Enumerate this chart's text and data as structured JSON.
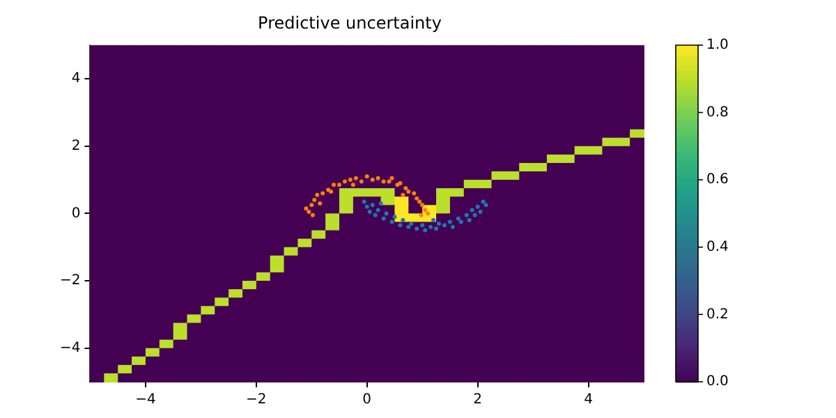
{
  "chart_data": {
    "type": "heatmap",
    "title": "Predictive uncertainty",
    "xlim": [
      -5,
      5
    ],
    "ylim": [
      -5,
      5
    ],
    "xticks": [
      -4,
      -2,
      0,
      2,
      4
    ],
    "yticks": [
      -4,
      -2,
      0,
      2,
      4
    ],
    "clim": [
      0,
      1
    ],
    "cticks": [
      {
        "value": 0,
        "label": "0.0"
      },
      {
        "value": 0.2,
        "label": "0.2"
      },
      {
        "value": 0.4,
        "label": "0.4"
      },
      {
        "value": 0.6,
        "label": "0.6"
      },
      {
        "value": 0.8,
        "label": "0.8"
      },
      {
        "value": 1,
        "label": "1.0"
      }
    ],
    "cells": [
      [
        0,
        0,
        0,
        0,
        0,
        0,
        0,
        0,
        0,
        0,
        0,
        0,
        0,
        0,
        0,
        0,
        0,
        0,
        0,
        0,
        0,
        0,
        0,
        0,
        0,
        0,
        0,
        0,
        0,
        0,
        0,
        0,
        0,
        0,
        0,
        0,
        0,
        0,
        0,
        0
      ],
      [
        0,
        0,
        0,
        0,
        0,
        0,
        0,
        0,
        0,
        0,
        0,
        0,
        0,
        0,
        0,
        0,
        0,
        0,
        0,
        0,
        0,
        0,
        0,
        0,
        0,
        0,
        0,
        0,
        0,
        0,
        0,
        0,
        0,
        0,
        0,
        0,
        0,
        0,
        0,
        0
      ],
      [
        0,
        0,
        0,
        0,
        0,
        0,
        0,
        0,
        0,
        0,
        0,
        0,
        0,
        0,
        0,
        0,
        0,
        0,
        0,
        0,
        0,
        0,
        0,
        0,
        0,
        0,
        0,
        0,
        0,
        0,
        0,
        0,
        0,
        0,
        0,
        0,
        0,
        0,
        0,
        0
      ],
      [
        0,
        0,
        0,
        0,
        0,
        0,
        0,
        0,
        0,
        0,
        0,
        0,
        0,
        0,
        0,
        0,
        0,
        0,
        0,
        0,
        0,
        0,
        0,
        0,
        0,
        0,
        0,
        0,
        0,
        0,
        0,
        0,
        0,
        0,
        0,
        0,
        0,
        0,
        0,
        0
      ],
      [
        0,
        0,
        0,
        0,
        0,
        0,
        0,
        0,
        0,
        0,
        0,
        0,
        0,
        0,
        0,
        0,
        0,
        0,
        0,
        0,
        0,
        0,
        0,
        0,
        0,
        0,
        0,
        0,
        0,
        0,
        0,
        0,
        0,
        0,
        0,
        0,
        0,
        0,
        0,
        0
      ],
      [
        0,
        0,
        0,
        0,
        0,
        0,
        0,
        0,
        0,
        0,
        0,
        0,
        0,
        0,
        0,
        0,
        0,
        0,
        0,
        0,
        0,
        0,
        0,
        0,
        0,
        0,
        0,
        0,
        0,
        0,
        0,
        0,
        0,
        0,
        0,
        0,
        0,
        0,
        0,
        0
      ],
      [
        0,
        0,
        0,
        0,
        0,
        0,
        0,
        0,
        0,
        0,
        0,
        0,
        0,
        0,
        0,
        0,
        0,
        0,
        0,
        0,
        0,
        0,
        0,
        0,
        0,
        0,
        0,
        0,
        0,
        0,
        0,
        0,
        0,
        0,
        0,
        0,
        0,
        0,
        0,
        0
      ],
      [
        0,
        0,
        0,
        0,
        0,
        0,
        0,
        0,
        0,
        0,
        0,
        0,
        0,
        0,
        0,
        0,
        0,
        0,
        0,
        0,
        0,
        0,
        0,
        0,
        0,
        0,
        0,
        0,
        0,
        0,
        0,
        0,
        0,
        0,
        0,
        0,
        0,
        0,
        0,
        0
      ],
      [
        0,
        0,
        0,
        0,
        0,
        0,
        0,
        0,
        0,
        0,
        0,
        0,
        0,
        0,
        0,
        0,
        0,
        0,
        0,
        0,
        0,
        0,
        0,
        0,
        0,
        0,
        0,
        0,
        0,
        0,
        0,
        0,
        0,
        0,
        0,
        0,
        0,
        0,
        0,
        0
      ],
      [
        0,
        0,
        0,
        0,
        0,
        0,
        0,
        0,
        0,
        0,
        0,
        0,
        0,
        0,
        0,
        0,
        0,
        0,
        0,
        0,
        0,
        0,
        0,
        0,
        0,
        0,
        0,
        0,
        0,
        0,
        0,
        0,
        0,
        0,
        0,
        0,
        0,
        0,
        0,
        0
      ],
      [
        0,
        0,
        0,
        0,
        0,
        0,
        0,
        0,
        0,
        0,
        0,
        0,
        0,
        0,
        0,
        0,
        0,
        0,
        0,
        0,
        0,
        0,
        0,
        0,
        0,
        0,
        0,
        0,
        0,
        0,
        0,
        0,
        0,
        0,
        0,
        0,
        0,
        0,
        0,
        0.9
      ],
      [
        0,
        0,
        0,
        0,
        0,
        0,
        0,
        0,
        0,
        0,
        0,
        0,
        0,
        0,
        0,
        0,
        0,
        0,
        0,
        0,
        0,
        0,
        0,
        0,
        0,
        0,
        0,
        0,
        0,
        0,
        0,
        0,
        0,
        0,
        0,
        0,
        0,
        0.9,
        0.9,
        0
      ],
      [
        0,
        0,
        0,
        0,
        0,
        0,
        0,
        0,
        0,
        0,
        0,
        0,
        0,
        0,
        0,
        0,
        0,
        0,
        0,
        0,
        0,
        0,
        0,
        0,
        0,
        0,
        0,
        0,
        0,
        0,
        0,
        0,
        0,
        0,
        0,
        0.9,
        0.9,
        0,
        0,
        0
      ],
      [
        0,
        0,
        0,
        0,
        0,
        0,
        0,
        0,
        0,
        0,
        0,
        0,
        0,
        0,
        0,
        0,
        0,
        0,
        0,
        0,
        0,
        0,
        0,
        0,
        0,
        0,
        0,
        0,
        0,
        0,
        0,
        0,
        0,
        0.9,
        0.9,
        0,
        0,
        0,
        0,
        0
      ],
      [
        0,
        0,
        0,
        0,
        0,
        0,
        0,
        0,
        0,
        0,
        0,
        0,
        0,
        0,
        0,
        0,
        0,
        0,
        0,
        0,
        0,
        0,
        0,
        0,
        0,
        0,
        0,
        0,
        0,
        0,
        0,
        0.9,
        0.9,
        0,
        0,
        0,
        0,
        0,
        0,
        0
      ],
      [
        0,
        0,
        0,
        0,
        0,
        0,
        0,
        0,
        0,
        0,
        0,
        0,
        0,
        0,
        0,
        0,
        0,
        0,
        0,
        0,
        0,
        0,
        0,
        0,
        0,
        0,
        0,
        0,
        0,
        0.9,
        0.9,
        0,
        0,
        0,
        0,
        0,
        0,
        0,
        0,
        0
      ],
      [
        0,
        0,
        0,
        0,
        0,
        0,
        0,
        0,
        0,
        0,
        0,
        0,
        0,
        0,
        0,
        0,
        0,
        0,
        0,
        0,
        0,
        0,
        0,
        0,
        0,
        0,
        0,
        0.9,
        0.9,
        0,
        0,
        0,
        0,
        0,
        0,
        0,
        0,
        0,
        0,
        0
      ],
      [
        0,
        0,
        0,
        0,
        0,
        0,
        0,
        0,
        0,
        0,
        0,
        0,
        0,
        0,
        0,
        0,
        0,
        0,
        0.9,
        0.9,
        0.9,
        0.9,
        0,
        0,
        0,
        0.9,
        0.9,
        0,
        0,
        0,
        0,
        0,
        0,
        0,
        0,
        0,
        0,
        0,
        0,
        0
      ],
      [
        0,
        0,
        0,
        0,
        0,
        0,
        0,
        0,
        0,
        0,
        0,
        0,
        0,
        0,
        0,
        0,
        0,
        0,
        0.9,
        0,
        0,
        0.9,
        1,
        0,
        0,
        0.9,
        0,
        0,
        0,
        0,
        0,
        0,
        0,
        0,
        0,
        0,
        0,
        0,
        0,
        0
      ],
      [
        0,
        0,
        0,
        0,
        0,
        0,
        0,
        0,
        0,
        0,
        0,
        0,
        0,
        0,
        0,
        0,
        0,
        0,
        0.9,
        0,
        0,
        0,
        1,
        0,
        1,
        0.9,
        0,
        0,
        0,
        0,
        0,
        0,
        0,
        0,
        0,
        0,
        0,
        0,
        0,
        0
      ],
      [
        0,
        0,
        0,
        0,
        0,
        0,
        0,
        0,
        0,
        0,
        0,
        0,
        0,
        0,
        0,
        0,
        0,
        0.9,
        0,
        0,
        0,
        0,
        1,
        1,
        1,
        0,
        0,
        0,
        0,
        0,
        0,
        0,
        0,
        0,
        0,
        0,
        0,
        0,
        0,
        0
      ],
      [
        0,
        0,
        0,
        0,
        0,
        0,
        0,
        0,
        0,
        0,
        0,
        0,
        0,
        0,
        0,
        0,
        0,
        0.9,
        0,
        0,
        0,
        0,
        0,
        0,
        0,
        0,
        0,
        0,
        0,
        0,
        0,
        0,
        0,
        0,
        0,
        0,
        0,
        0,
        0,
        0
      ],
      [
        0,
        0,
        0,
        0,
        0,
        0,
        0,
        0,
        0,
        0,
        0,
        0,
        0,
        0,
        0,
        0,
        0.9,
        0,
        0,
        0,
        0,
        0,
        0,
        0,
        0,
        0,
        0,
        0,
        0,
        0,
        0,
        0,
        0,
        0,
        0,
        0,
        0,
        0,
        0,
        0
      ],
      [
        0,
        0,
        0,
        0,
        0,
        0,
        0,
        0,
        0,
        0,
        0,
        0,
        0,
        0,
        0,
        0.9,
        0,
        0,
        0,
        0,
        0,
        0,
        0,
        0,
        0,
        0,
        0,
        0,
        0,
        0,
        0,
        0,
        0,
        0,
        0,
        0,
        0,
        0,
        0,
        0
      ],
      [
        0,
        0,
        0,
        0,
        0,
        0,
        0,
        0,
        0,
        0,
        0,
        0,
        0,
        0,
        0.9,
        0,
        0,
        0,
        0,
        0,
        0,
        0,
        0,
        0,
        0,
        0,
        0,
        0,
        0,
        0,
        0,
        0,
        0,
        0,
        0,
        0,
        0,
        0,
        0,
        0
      ],
      [
        0,
        0,
        0,
        0,
        0,
        0,
        0,
        0,
        0,
        0,
        0,
        0,
        0,
        0.9,
        0,
        0,
        0,
        0,
        0,
        0,
        0,
        0,
        0,
        0,
        0,
        0,
        0,
        0,
        0,
        0,
        0,
        0,
        0,
        0,
        0,
        0,
        0,
        0,
        0,
        0
      ],
      [
        0,
        0,
        0,
        0,
        0,
        0,
        0,
        0,
        0,
        0,
        0,
        0,
        0,
        0.9,
        0,
        0,
        0,
        0,
        0,
        0,
        0,
        0,
        0,
        0,
        0,
        0,
        0,
        0,
        0,
        0,
        0,
        0,
        0,
        0,
        0,
        0,
        0,
        0,
        0,
        0
      ],
      [
        0,
        0,
        0,
        0,
        0,
        0,
        0,
        0,
        0,
        0,
        0,
        0,
        0.9,
        0,
        0,
        0,
        0,
        0,
        0,
        0,
        0,
        0,
        0,
        0,
        0,
        0,
        0,
        0,
        0,
        0,
        0,
        0,
        0,
        0,
        0,
        0,
        0,
        0,
        0,
        0
      ],
      [
        0,
        0,
        0,
        0,
        0,
        0,
        0,
        0,
        0,
        0,
        0,
        0.9,
        0,
        0,
        0,
        0,
        0,
        0,
        0,
        0,
        0,
        0,
        0,
        0,
        0,
        0,
        0,
        0,
        0,
        0,
        0,
        0,
        0,
        0,
        0,
        0,
        0,
        0,
        0,
        0
      ],
      [
        0,
        0,
        0,
        0,
        0,
        0,
        0,
        0,
        0,
        0,
        0.9,
        0,
        0,
        0,
        0,
        0,
        0,
        0,
        0,
        0,
        0,
        0,
        0,
        0,
        0,
        0,
        0,
        0,
        0,
        0,
        0,
        0,
        0,
        0,
        0,
        0,
        0,
        0,
        0,
        0
      ],
      [
        0,
        0,
        0,
        0,
        0,
        0,
        0,
        0,
        0,
        0.9,
        0,
        0,
        0,
        0,
        0,
        0,
        0,
        0,
        0,
        0,
        0,
        0,
        0,
        0,
        0,
        0,
        0,
        0,
        0,
        0,
        0,
        0,
        0,
        0,
        0,
        0,
        0,
        0,
        0,
        0
      ],
      [
        0,
        0,
        0,
        0,
        0,
        0,
        0,
        0,
        0.9,
        0,
        0,
        0,
        0,
        0,
        0,
        0,
        0,
        0,
        0,
        0,
        0,
        0,
        0,
        0,
        0,
        0,
        0,
        0,
        0,
        0,
        0,
        0,
        0,
        0,
        0,
        0,
        0,
        0,
        0,
        0
      ],
      [
        0,
        0,
        0,
        0,
        0,
        0,
        0,
        0.9,
        0,
        0,
        0,
        0,
        0,
        0,
        0,
        0,
        0,
        0,
        0,
        0,
        0,
        0,
        0,
        0,
        0,
        0,
        0,
        0,
        0,
        0,
        0,
        0,
        0,
        0,
        0,
        0,
        0,
        0,
        0,
        0
      ],
      [
        0,
        0,
        0,
        0,
        0,
        0,
        0.9,
        0,
        0,
        0,
        0,
        0,
        0,
        0,
        0,
        0,
        0,
        0,
        0,
        0,
        0,
        0,
        0,
        0,
        0,
        0,
        0,
        0,
        0,
        0,
        0,
        0,
        0,
        0,
        0,
        0,
        0,
        0,
        0,
        0
      ],
      [
        0,
        0,
        0,
        0,
        0,
        0,
        0.9,
        0,
        0,
        0,
        0,
        0,
        0,
        0,
        0,
        0,
        0,
        0,
        0,
        0,
        0,
        0,
        0,
        0,
        0,
        0,
        0,
        0,
        0,
        0,
        0,
        0,
        0,
        0,
        0,
        0,
        0,
        0,
        0,
        0
      ],
      [
        0,
        0,
        0,
        0,
        0,
        0.9,
        0,
        0,
        0,
        0,
        0,
        0,
        0,
        0,
        0,
        0,
        0,
        0,
        0,
        0,
        0,
        0,
        0,
        0,
        0,
        0,
        0,
        0,
        0,
        0,
        0,
        0,
        0,
        0,
        0,
        0,
        0,
        0,
        0,
        0
      ],
      [
        0,
        0,
        0,
        0,
        0.9,
        0,
        0,
        0,
        0,
        0,
        0,
        0,
        0,
        0,
        0,
        0,
        0,
        0,
        0,
        0,
        0,
        0,
        0,
        0,
        0,
        0,
        0,
        0,
        0,
        0,
        0,
        0,
        0,
        0,
        0,
        0,
        0,
        0,
        0,
        0
      ],
      [
        0,
        0,
        0,
        0.9,
        0,
        0,
        0,
        0,
        0,
        0,
        0,
        0,
        0,
        0,
        0,
        0,
        0,
        0,
        0,
        0,
        0,
        0,
        0,
        0,
        0,
        0,
        0,
        0,
        0,
        0,
        0,
        0,
        0,
        0,
        0,
        0,
        0,
        0,
        0,
        0
      ],
      [
        0,
        0,
        0.9,
        0,
        0,
        0,
        0,
        0,
        0,
        0,
        0,
        0,
        0,
        0,
        0,
        0,
        0,
        0,
        0,
        0,
        0,
        0,
        0,
        0,
        0,
        0,
        0,
        0,
        0,
        0,
        0,
        0,
        0,
        0,
        0,
        0,
        0,
        0,
        0,
        0
      ],
      [
        0,
        0.9,
        0,
        0,
        0,
        0,
        0,
        0,
        0,
        0,
        0,
        0,
        0,
        0,
        0,
        0,
        0,
        0,
        0,
        0,
        0,
        0,
        0,
        0,
        0,
        0,
        0,
        0,
        0,
        0,
        0,
        0,
        0,
        0,
        0,
        0,
        0,
        0,
        0,
        0
      ]
    ],
    "series": [
      {
        "type": "scatter",
        "color": "#ff7f0e",
        "x": [
          -1.05,
          -1.0,
          -0.95,
          -1.1,
          -0.9,
          -0.8,
          -0.85,
          -0.7,
          -0.6,
          -0.65,
          -0.5,
          -0.4,
          -0.3,
          -0.2,
          -0.1,
          0,
          0.1,
          0.2,
          0.3,
          0.4,
          0.45,
          0.55,
          0.6,
          0.7,
          0.75,
          0.85,
          0.9,
          0.95,
          1.0,
          1.05,
          1.1,
          0.98,
          -0.98,
          0.65,
          -0.25
        ],
        "values": [
          0.05,
          0.25,
          0.4,
          0.15,
          0.55,
          0.6,
          0.3,
          0.7,
          0.85,
          0.65,
          0.85,
          0.95,
          1.0,
          1.05,
          0.95,
          1.1,
          1.0,
          1.05,
          0.95,
          0.95,
          1.05,
          0.85,
          0.9,
          0.75,
          0.65,
          0.6,
          0.45,
          0.35,
          0.25,
          0.1,
          0.0,
          -0.05,
          -0.05,
          0.55,
          0.85
        ]
      },
      {
        "type": "scatter",
        "color": "#1f77b4",
        "x": [
          -0.05,
          0,
          0.05,
          0.1,
          0.15,
          0.2,
          0.3,
          0.35,
          0.45,
          0.5,
          0.6,
          0.65,
          0.75,
          0.8,
          0.9,
          1.0,
          1.05,
          1.15,
          1.25,
          1.3,
          1.4,
          1.5,
          1.55,
          1.65,
          1.7,
          1.8,
          1.85,
          1.9,
          1.95,
          2.0,
          2.05,
          2.15,
          2.1,
          0.25,
          1.2
        ],
        "values": [
          0.35,
          0.2,
          0.05,
          0.25,
          -0.05,
          0.1,
          -0.15,
          0.0,
          -0.25,
          -0.1,
          -0.35,
          -0.2,
          -0.4,
          -0.3,
          -0.45,
          -0.35,
          -0.5,
          -0.4,
          -0.45,
          -0.3,
          -0.35,
          -0.25,
          -0.4,
          -0.15,
          -0.25,
          -0.05,
          -0.2,
          0.1,
          -0.05,
          0.2,
          0.05,
          0.25,
          0.35,
          0.3,
          -0.2
        ]
      }
    ]
  }
}
